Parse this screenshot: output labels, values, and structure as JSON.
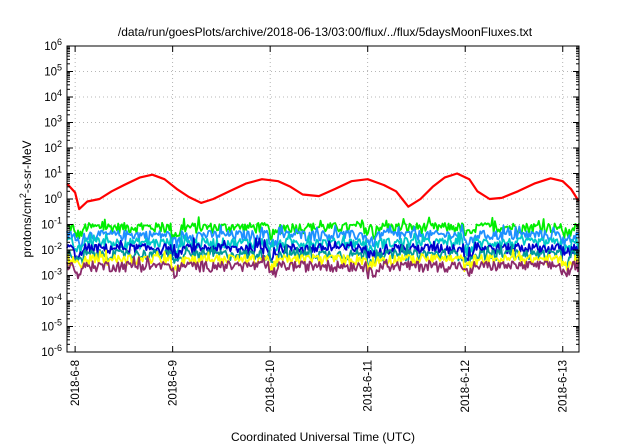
{
  "chart_data": {
    "type": "line",
    "title": "/data/run/goesPlots/archive/2018-06-13/03:00/flux/../flux/5daysMoonFluxes.txt",
    "xlabel": "Coordinated Universal Time (UTC)",
    "ylabel": "protons/cm2-s-sr-MeV",
    "ylabel_parts": {
      "before": "protons/cm",
      "sup": "2",
      "after": "-s-sr-MeV"
    },
    "y_scale": "log",
    "ylim": [
      1e-06,
      1000000.0
    ],
    "y_ticks": [
      {
        "base": "10",
        "exp": "-6",
        "value": 1e-06
      },
      {
        "base": "10",
        "exp": "-5",
        "value": 1e-05
      },
      {
        "base": "10",
        "exp": "-4",
        "value": 0.0001
      },
      {
        "base": "10",
        "exp": "-3",
        "value": 0.001
      },
      {
        "base": "10",
        "exp": "-2",
        "value": 0.01
      },
      {
        "base": "10",
        "exp": "-1",
        "value": 0.1
      },
      {
        "base": "10",
        "exp": "0",
        "value": 1
      },
      {
        "base": "10",
        "exp": "1",
        "value": 10
      },
      {
        "base": "10",
        "exp": "2",
        "value": 100
      },
      {
        "base": "10",
        "exp": "3",
        "value": 1000
      },
      {
        "base": "10",
        "exp": "4",
        "value": 10000
      },
      {
        "base": "10",
        "exp": "5",
        "value": 100000
      },
      {
        "base": "10",
        "exp": "6",
        "value": 1000000
      }
    ],
    "xlim": [
      "2018-06-07T22:00",
      "2018-06-13T04:00"
    ],
    "x_ticks": [
      {
        "label": "2018-6-8",
        "value": "2018-06-08T00:00"
      },
      {
        "label": "2018-6-9",
        "value": "2018-06-09T00:00"
      },
      {
        "label": "2018-6-10",
        "value": "2018-06-10T00:00"
      },
      {
        "label": "2018-6-11",
        "value": "2018-06-11T00:00"
      },
      {
        "label": "2018-6-12",
        "value": "2018-06-12T00:00"
      },
      {
        "label": "2018-6-13",
        "value": "2018-06-13T00:00"
      }
    ],
    "grid": true,
    "series": [
      {
        "color": "#ff0000",
        "points": [
          [
            "2018-06-07T22:00",
            4.0
          ],
          [
            "2018-06-08T00:00",
            1.8
          ],
          [
            "2018-06-08T01:00",
            0.4
          ],
          [
            "2018-06-08T03:00",
            0.8
          ],
          [
            "2018-06-08T06:00",
            1.0
          ],
          [
            "2018-06-08T09:00",
            2.0
          ],
          [
            "2018-06-08T12:00",
            3.5
          ],
          [
            "2018-06-08T16:00",
            7.0
          ],
          [
            "2018-06-08T19:00",
            9.0
          ],
          [
            "2018-06-08T22:00",
            6.0
          ],
          [
            "2018-06-09T01:00",
            2.5
          ],
          [
            "2018-06-09T04:00",
            1.2
          ],
          [
            "2018-06-09T07:00",
            0.7
          ],
          [
            "2018-06-09T10:00",
            1.0
          ],
          [
            "2018-06-09T14:00",
            2.0
          ],
          [
            "2018-06-09T18:00",
            4.0
          ],
          [
            "2018-06-09T22:00",
            6.0
          ],
          [
            "2018-06-10T02:00",
            5.0
          ],
          [
            "2018-06-10T05:00",
            3.0
          ],
          [
            "2018-06-10T08:00",
            1.5
          ],
          [
            "2018-06-10T12:00",
            1.3
          ],
          [
            "2018-06-10T16:00",
            2.5
          ],
          [
            "2018-06-10T20:00",
            5.0
          ],
          [
            "2018-06-11T00:00",
            6.0
          ],
          [
            "2018-06-11T04:00",
            3.5
          ],
          [
            "2018-06-11T07:00",
            2.0
          ],
          [
            "2018-06-11T10:00",
            0.5
          ],
          [
            "2018-06-11T13:00",
            1.0
          ],
          [
            "2018-06-11T16:00",
            3.0
          ],
          [
            "2018-06-11T19:00",
            7.0
          ],
          [
            "2018-06-11T22:00",
            10.0
          ],
          [
            "2018-06-12T01:00",
            6.0
          ],
          [
            "2018-06-12T03:00",
            2.0
          ],
          [
            "2018-06-12T06:00",
            1.0
          ],
          [
            "2018-06-12T09:00",
            1.1
          ],
          [
            "2018-06-12T13:00",
            2.0
          ],
          [
            "2018-06-12T17:00",
            4.0
          ],
          [
            "2018-06-12T21:00",
            6.5
          ],
          [
            "2018-06-13T00:00",
            5.0
          ],
          [
            "2018-06-13T02:00",
            2.5
          ],
          [
            "2018-06-13T04:00",
            0.8
          ]
        ]
      },
      {
        "color": "#00ee00",
        "level": 0.08
      },
      {
        "color": "#1e90ff",
        "level": 0.04
      },
      {
        "color": "#00c8c8",
        "level": 0.02
      },
      {
        "color": "#0000cc",
        "level": 0.012
      },
      {
        "color": "#009a9a",
        "level": 0.007
      },
      {
        "color": "#ffff00",
        "level": 0.0045
      },
      {
        "color": "#8b2b6a",
        "level": 0.0025
      }
    ]
  }
}
